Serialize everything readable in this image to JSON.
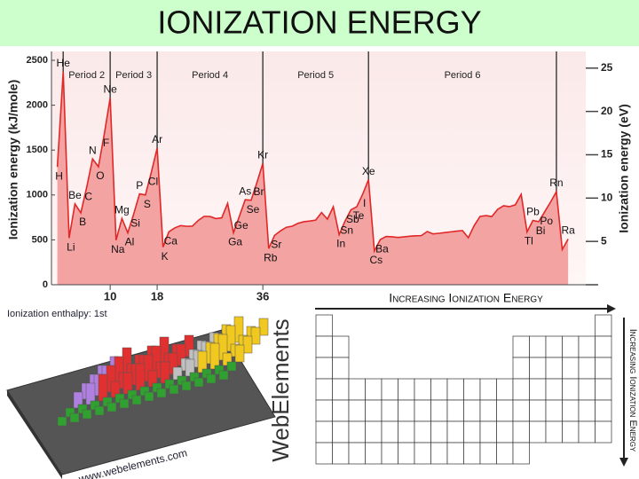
{
  "chart_data": {
    "type": "area",
    "title": "IONIZATION ENERGY",
    "y_label": "Ionization energy (kJ/mole)",
    "y2_label": "Ionization energy (eV)",
    "x": [
      1,
      2,
      3,
      4,
      5,
      6,
      7,
      8,
      9,
      10,
      11,
      12,
      13,
      14,
      15,
      16,
      17,
      18,
      19,
      20,
      21,
      22,
      23,
      24,
      25,
      26,
      27,
      28,
      29,
      30,
      31,
      32,
      33,
      34,
      35,
      36,
      37,
      38,
      39,
      40,
      41,
      42,
      43,
      44,
      45,
      46,
      47,
      48,
      49,
      50,
      51,
      52,
      53,
      54,
      55,
      56,
      57,
      58,
      59,
      60,
      61,
      62,
      63,
      64,
      65,
      66,
      67,
      68,
      69,
      70,
      71,
      72,
      73,
      74,
      75,
      76,
      77,
      78,
      79,
      80,
      81,
      82,
      83,
      84,
      85,
      86,
      87,
      88
    ],
    "values": [
      1312,
      2372,
      520,
      900,
      801,
      1086,
      1402,
      1314,
      1681,
      2081,
      496,
      738,
      578,
      787,
      1012,
      1000,
      1251,
      1521,
      419,
      590,
      633,
      659,
      651,
      653,
      717,
      762,
      760,
      737,
      745,
      906,
      579,
      762,
      947,
      941,
      1140,
      1351,
      403,
      550,
      600,
      640,
      652,
      684,
      702,
      710,
      720,
      804,
      731,
      868,
      558,
      709,
      834,
      869,
      1008,
      1170,
      376,
      503,
      538,
      534,
      527,
      533,
      540,
      545,
      547,
      593,
      566,
      573,
      581,
      589,
      597,
      603,
      524,
      659,
      761,
      770,
      760,
      840,
      880,
      870,
      890,
      1007,
      589,
      716,
      703,
      812,
      920,
      1037,
      393,
      509
    ],
    "point_labels": [
      "H",
      "He",
      "Li",
      "Be",
      "B",
      "C",
      "N",
      "O",
      "F",
      "Ne",
      "Na",
      "Mg",
      "Al",
      "Si",
      "P",
      "S",
      "Cl",
      "Ar",
      "K",
      "Ca",
      null,
      null,
      null,
      null,
      null,
      null,
      null,
      null,
      null,
      null,
      "Ga",
      "Ge",
      "As",
      "Se",
      "Br",
      "Kr",
      "Rb",
      "Sr",
      null,
      null,
      null,
      null,
      null,
      null,
      null,
      null,
      null,
      null,
      "In",
      "Sn",
      "Sb",
      "Te",
      "I",
      "Xe",
      "Cs",
      "Ba",
      null,
      null,
      null,
      null,
      null,
      null,
      null,
      null,
      null,
      null,
      null,
      null,
      null,
      null,
      null,
      null,
      null,
      null,
      null,
      null,
      null,
      null,
      null,
      null,
      "Tl",
      "Pb",
      "Bi",
      "Po",
      null,
      "Rn",
      null,
      "Ra"
    ],
    "color": "#e02828",
    "fill": "#f4a3a3",
    "xlim": [
      0,
      91
    ],
    "xticks": [
      10,
      18,
      36
    ],
    "ylim": [
      0,
      2500
    ],
    "yticks": [
      0,
      500,
      1000,
      1500,
      2000,
      2500
    ],
    "y2lim": [
      0,
      25.9
    ],
    "y2ticks": [
      5,
      10,
      15,
      20,
      25
    ],
    "period_boundaries": [
      2,
      10,
      18,
      36,
      54,
      86
    ],
    "periods": [
      "Period 2",
      "Period 3",
      "Period 4",
      "Period 5",
      "Period 6"
    ]
  },
  "images": {
    "enthalpy": {
      "title": "Ionization enthalpy: 1st",
      "url": "www.webelements.com",
      "brand": "WebElements"
    },
    "table": {
      "title": "Increasing Ionization Energy",
      "side_label": "Increasing Ionization Energy"
    }
  }
}
